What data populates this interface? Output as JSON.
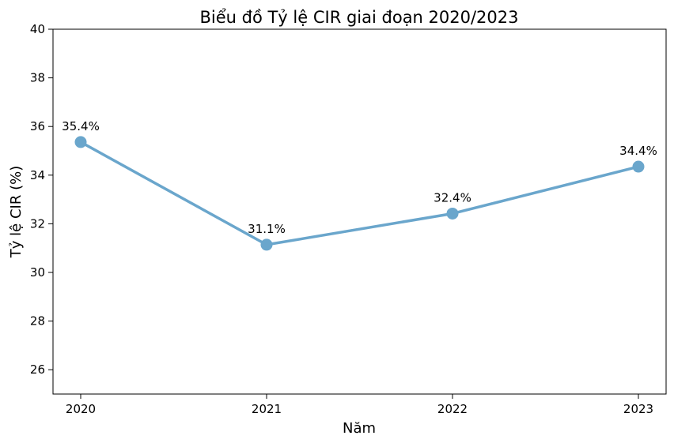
{
  "chart_data": {
    "type": "line",
    "title": "Biểu đồ Tỷ lệ CIR giai đoạn 2020/2023",
    "xlabel": "Năm",
    "ylabel": "Tỷ lệ CIR (%)",
    "categories": [
      "2020",
      "2021",
      "2022",
      "2023"
    ],
    "values": [
      35.36,
      31.14,
      32.42,
      34.35
    ],
    "data_labels": [
      "35.4%",
      "31.1%",
      "32.4%",
      "34.4%"
    ],
    "ylim": [
      25,
      40
    ],
    "yticks": [
      26,
      28,
      30,
      32,
      34,
      36,
      38,
      40
    ],
    "grid": false,
    "legend": "none",
    "line_color": "#6aa6cc",
    "marker": "circle"
  }
}
